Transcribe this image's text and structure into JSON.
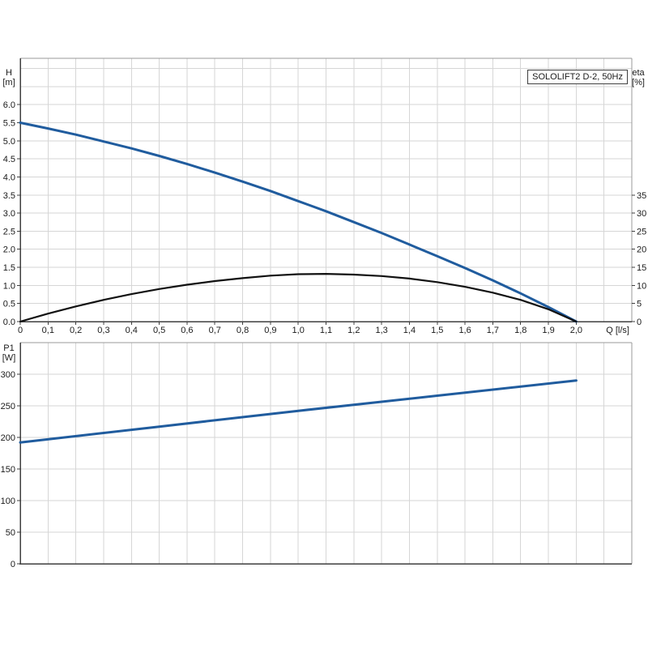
{
  "colors": {
    "background": "#ffffff",
    "grid": "#d6d6d6",
    "border_light": "#9a9a9a",
    "axis_dark": "#3f3f3f",
    "text": "#1a1a1a",
    "curve_blue": "#205c9e",
    "curve_black": "#111111"
  },
  "title_box": "SOLOLIFT2 D-2, 50Hz",
  "chart_data": [
    {
      "type": "line",
      "title": "SOLOLIFT2 D-2, 50Hz",
      "xlabel": "Q [l/s]",
      "ylabel_left": "H [m]",
      "ylabel_left_lines": [
        "H",
        "[m]"
      ],
      "ylabel_right": "eta [%]",
      "ylabel_right_lines": [
        "eta",
        "[%]"
      ],
      "grid": true,
      "legend": "none",
      "xlim": [
        0,
        2.2
      ],
      "x_grid_step": 0.1,
      "ylim_left": [
        0,
        7.28
      ],
      "y_grid_step": 0.5,
      "ylim_right": [
        0,
        72.8
      ],
      "x_tick_values": [
        0,
        0.1,
        0.2,
        0.3,
        0.4,
        0.5,
        0.6,
        0.7,
        0.8,
        0.9,
        1.0,
        1.1,
        1.2,
        1.3,
        1.4,
        1.5,
        1.6,
        1.7,
        1.8,
        1.9,
        2.0
      ],
      "x_tick_labels": [
        "0",
        "0,1",
        "0,2",
        "0,3",
        "0,4",
        "0,5",
        "0,6",
        "0,7",
        "0,8",
        "0,9",
        "1,0",
        "1,1",
        "1,2",
        "1,3",
        "1,4",
        "1,5",
        "1,6",
        "1,7",
        "1,8",
        "1,9",
        "2,0"
      ],
      "y_left_tick_values": [
        0,
        0.5,
        1.0,
        1.5,
        2.0,
        2.5,
        3.0,
        3.5,
        4.0,
        4.5,
        5.0,
        5.5,
        6.0
      ],
      "y_left_tick_labels": [
        "0.0",
        "0.5",
        "1.0",
        "1.5",
        "2.0",
        "2.5",
        "3.0",
        "3.5",
        "4.0",
        "4.5",
        "5.0",
        "5.5",
        "6.0"
      ],
      "y_right_tick_values": [
        0,
        5,
        10,
        15,
        20,
        25,
        30,
        35
      ],
      "y_right_tick_labels": [
        "0",
        "5",
        "10",
        "15",
        "20",
        "25",
        "30",
        "35"
      ],
      "series": [
        {
          "name": "head-curve",
          "label": "H (pump head)",
          "axis": "left",
          "color": "#205c9e",
          "width": 3,
          "x": [
            0,
            0.1,
            0.2,
            0.3,
            0.4,
            0.5,
            0.6,
            0.7,
            0.8,
            0.9,
            1.0,
            1.1,
            1.2,
            1.3,
            1.4,
            1.5,
            1.6,
            1.7,
            1.8,
            1.9,
            2.0
          ],
          "y": [
            5.5,
            5.34,
            5.17,
            4.98,
            4.79,
            4.58,
            4.36,
            4.12,
            3.87,
            3.61,
            3.33,
            3.05,
            2.75,
            2.45,
            2.13,
            1.81,
            1.48,
            1.14,
            0.78,
            0.4,
            0.0
          ]
        },
        {
          "name": "efficiency-curve",
          "label": "eta (efficiency)",
          "axis": "right",
          "color": "#111111",
          "width": 2.2,
          "x": [
            0,
            0.1,
            0.2,
            0.3,
            0.4,
            0.5,
            0.6,
            0.7,
            0.8,
            0.9,
            1.0,
            1.1,
            1.2,
            1.3,
            1.4,
            1.5,
            1.6,
            1.7,
            1.8,
            1.9,
            2.0
          ],
          "y": [
            0,
            2.2,
            4.2,
            6.0,
            7.6,
            9.0,
            10.2,
            11.2,
            12.0,
            12.7,
            13.1,
            13.2,
            13.0,
            12.6,
            11.9,
            10.9,
            9.6,
            8.0,
            6.0,
            3.4,
            0
          ]
        }
      ]
    },
    {
      "type": "line",
      "title": "",
      "xlabel": "",
      "ylabel_left": "P1 [W]",
      "ylabel_left_lines": [
        "P1",
        "[W]"
      ],
      "grid": true,
      "legend": "none",
      "xlim": [
        0,
        2.2
      ],
      "x_grid_step": 0.1,
      "ylim_left": [
        0,
        350
      ],
      "y_grid_step": 50,
      "x_tick_values": [],
      "x_tick_labels": [],
      "y_left_tick_values": [
        0,
        50,
        100,
        150,
        200,
        250,
        300
      ],
      "y_left_tick_labels": [
        "0",
        "50",
        "100",
        "150",
        "200",
        "250",
        "300"
      ],
      "series": [
        {
          "name": "power-curve",
          "label": "P1 (input power)",
          "axis": "left",
          "color": "#205c9e",
          "width": 3,
          "x": [
            0,
            0.5,
            1.0,
            1.5,
            2.0
          ],
          "y": [
            192,
            217,
            242,
            266,
            290
          ]
        }
      ]
    }
  ]
}
